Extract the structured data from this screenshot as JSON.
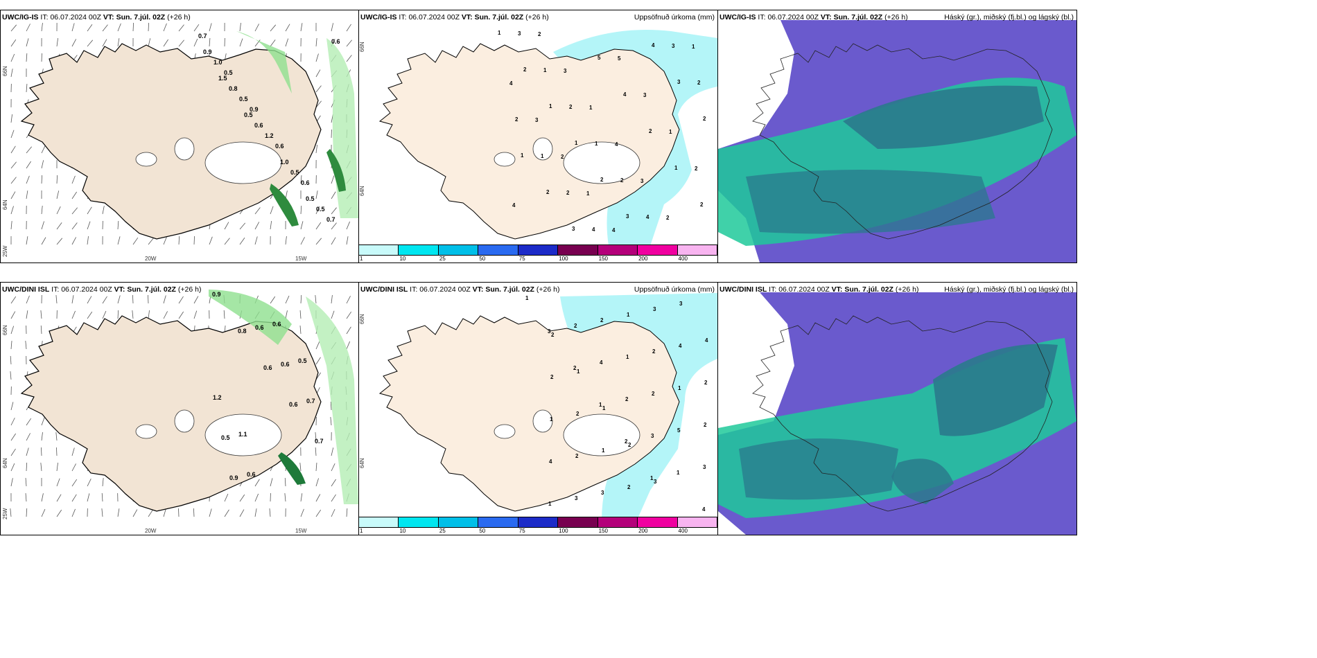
{
  "colorbar": {
    "colors": [
      "#c8fafa",
      "#00e6f0",
      "#00bfe8",
      "#2a6af0",
      "#1c2bc8",
      "#780050",
      "#b4007a",
      "#f000a0",
      "#f8b4f0"
    ],
    "labels": [
      "1",
      "10",
      "25",
      "50",
      "75",
      "100",
      "150",
      "200",
      "400"
    ]
  },
  "colors": {
    "land": "#f2e4d4",
    "land_outline": "#000000",
    "precip_light": "#b4f5f8",
    "wind_green_light": "#b4eeb4",
    "wind_green_dark": "#1e7a3a",
    "cloud_high": "#6a5acd",
    "cloud_mid": "#1fc99a",
    "cloud_low": "#2a7a8c"
  },
  "rows": [
    {
      "panels": [
        {
          "model": "UWC/IG-IS",
          "it_label": "IT:",
          "it_value": "06.07.2024 00Z",
          "vt_label": "VT:",
          "vt_value": "Sun. 7.júl. 02Z",
          "lead": "(+26 h)",
          "right_title": "",
          "lat_labels": [
            "66N",
            "64N",
            "25W"
          ],
          "lon_labels": [
            "20W",
            "15W"
          ],
          "values": [
            "0.7",
            "0.5",
            "0.9",
            "0.6",
            "0.6",
            "0.7",
            "1.0",
            "0.5",
            "1.2",
            "0.5",
            "0.5",
            "0.9",
            "0.8",
            "0.6",
            "1.0",
            "0.5",
            "0.6",
            "1.5",
            "0.5"
          ]
        },
        {
          "model": "UWC/IG-IS",
          "it_label": "IT:",
          "it_value": "06.07.2024 00Z",
          "vt_label": "VT:",
          "vt_value": "Sun. 7.júl. 02Z",
          "lead": "(+26 h)",
          "right_title": "Uppsöfnuð úrkoma (mm)",
          "lat_labels": [
            "66N",
            "64N"
          ],
          "values": [
            "1",
            "2",
            "1",
            "1",
            "2",
            "3",
            "4",
            "3",
            "2",
            "1",
            "2",
            "3",
            "5",
            "4",
            "2",
            "1",
            "2",
            "3",
            "1",
            "2",
            "1",
            "2",
            "4",
            "3",
            "2",
            "2",
            "1",
            "2",
            "4",
            "5",
            "3",
            "1",
            "2",
            "4",
            "2",
            "3",
            "1",
            "4",
            "3",
            "2",
            "1",
            "4",
            "3",
            "2",
            "1",
            "4"
          ]
        },
        {
          "model": "UWC/IG-IS",
          "it_label": "IT:",
          "it_value": "06.07.2024 00Z",
          "vt_label": "VT:",
          "vt_value": "Sun. 7.júl. 02Z",
          "lead": "(+26 h)",
          "right_title": "Háský (gr.), miðský (fj.bl.) og lágský (bl.)"
        }
      ]
    },
    {
      "panels": [
        {
          "model": "UWC/DINI ISL",
          "it_label": "IT:",
          "it_value": "06.07.2024 00Z",
          "vt_label": "VT:",
          "vt_value": "Sun. 7.júl. 02Z",
          "lead": "(+26 h)",
          "right_title": "",
          "lat_labels": [
            "66N",
            "64N",
            "25W"
          ],
          "lon_labels": [
            "20W",
            "15W"
          ],
          "values": [
            "0.9",
            "0.8",
            "0.6",
            "0.6",
            "0.7",
            "0.9",
            "0.6",
            "0.6",
            "0.7",
            "0.5",
            "0.6",
            "0.6",
            "0.5",
            "1.2",
            "1.1"
          ]
        },
        {
          "model": "UWC/DINI ISL",
          "it_label": "IT:",
          "it_value": "06.07.2024 00Z",
          "vt_label": "VT:",
          "vt_value": "Sun. 7.júl. 02Z",
          "lead": "(+26 h)",
          "right_title": "Uppsöfnuð úrkoma (mm)",
          "lat_labels": [
            "66N",
            "64N"
          ],
          "values": [
            "1",
            "2",
            "1",
            "1",
            "2",
            "3",
            "3",
            "4",
            "2",
            "2",
            "1",
            "2",
            "3",
            "4",
            "2",
            "1",
            "2",
            "3",
            "1",
            "2",
            "1",
            "2",
            "4",
            "3",
            "2",
            "1",
            "2",
            "5",
            "3",
            "1",
            "2",
            "4",
            "2",
            "3",
            "1",
            "4",
            "3",
            "2",
            "1",
            "2",
            "1"
          ]
        },
        {
          "model": "UWC/DINI ISL",
          "it_label": "IT:",
          "it_value": "06.07.2024 00Z",
          "vt_label": "VT:",
          "vt_value": "Sun. 7.júl. 02Z",
          "lead": "(+26 h)",
          "right_title": "Háský (gr.), miðský (fj.bl.) og lágský (bl.)"
        }
      ]
    }
  ]
}
